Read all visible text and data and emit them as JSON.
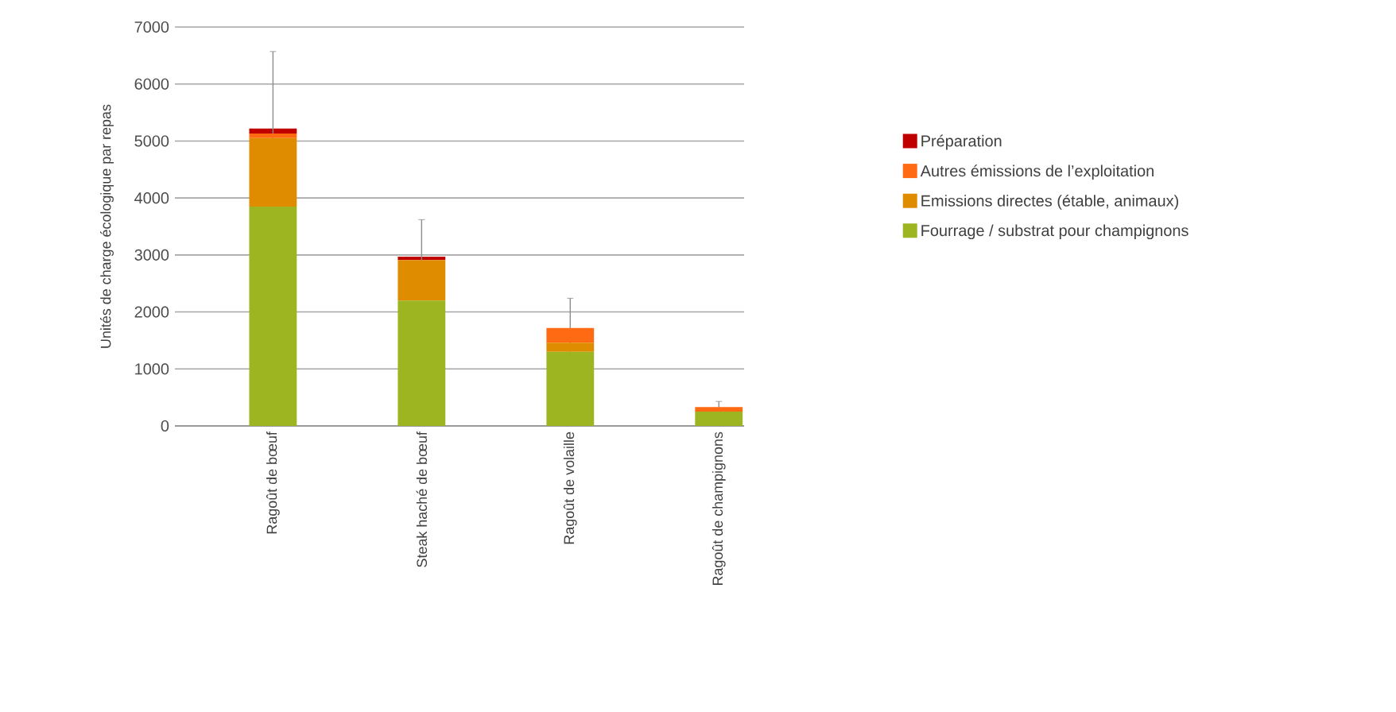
{
  "chart_data": {
    "type": "bar",
    "stacked": true,
    "ylabel": "Unités de charge écologique par repas",
    "categories": [
      "Ragoût de bœuf",
      "Steak haché de bœuf",
      "Ragoût de volaille",
      "Ragoût de champignons"
    ],
    "series": [
      {
        "name": "Fourrage / substrat pour champignons",
        "color": "#9db520",
        "values": [
          3850,
          2200,
          1300,
          250
        ]
      },
      {
        "name": "Emissions directes (étable, animaux)",
        "color": "#e08c00",
        "values": [
          1200,
          710,
          160,
          0
        ]
      },
      {
        "name": "Autres émissions de l’exploitation",
        "color": "#ff6a13",
        "values": [
          80,
          0,
          260,
          80
        ]
      },
      {
        "name": "Préparation",
        "color": "#c00000",
        "values": [
          90,
          60,
          0,
          0
        ],
        "errors": [
          1350,
          650,
          520,
          100
        ]
      }
    ],
    "ylim": [
      0,
      7000
    ],
    "yticks": [
      0,
      1000,
      2000,
      3000,
      4000,
      5000,
      6000,
      7000
    ],
    "grid": "y",
    "legend": "right"
  }
}
